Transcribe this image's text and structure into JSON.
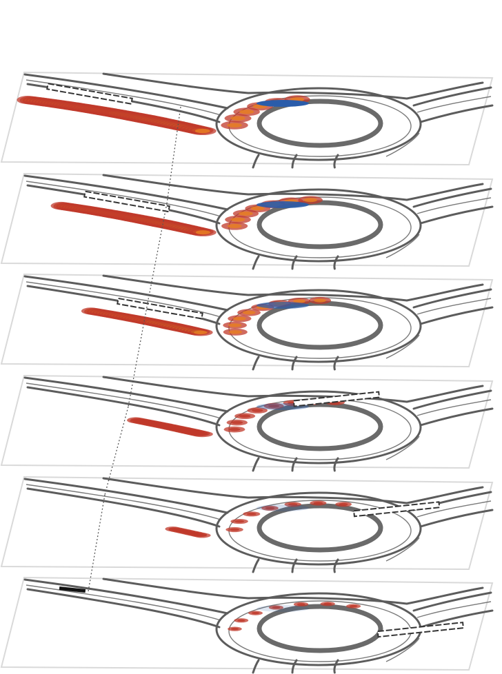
{
  "figure": {
    "description_free": true,
    "panels": [
      {
        "id": 1,
        "vehicle": {
          "t": 0.0,
          "ring": false
        },
        "heat_extent": 1.0,
        "ghost_blue": 1.0
      },
      {
        "id": 2,
        "vehicle": {
          "t": 0.18,
          "ring": false
        },
        "heat_extent": 0.9,
        "ghost_blue": 0.9
      },
      {
        "id": 3,
        "vehicle": {
          "t": 0.34,
          "ring": false
        },
        "heat_extent": 0.7,
        "ghost_blue": 0.7
      },
      {
        "id": 4,
        "vehicle": {
          "t": 0.58,
          "ring": true
        },
        "heat_extent": 0.45,
        "ghost_blue": 0.4
      },
      {
        "id": 5,
        "vehicle": {
          "t": 0.78,
          "ring": true
        },
        "heat_extent": 0.2,
        "ghost_blue": 0.2
      },
      {
        "id": 6,
        "vehicle": {
          "t": 0.96,
          "ring": true
        },
        "heat_extent": 0.05,
        "ghost_blue": 0.15
      }
    ],
    "colors": {
      "heat_low": "#c0392b",
      "heat_mid": "#e67e22",
      "heat_high": "#f1c40f",
      "heat_peak": "#2ecc71",
      "ghost": "#2a5caa",
      "road": "#5c5c5c",
      "plane_edge": "#d9d9d9",
      "leader": "#555555"
    }
  }
}
